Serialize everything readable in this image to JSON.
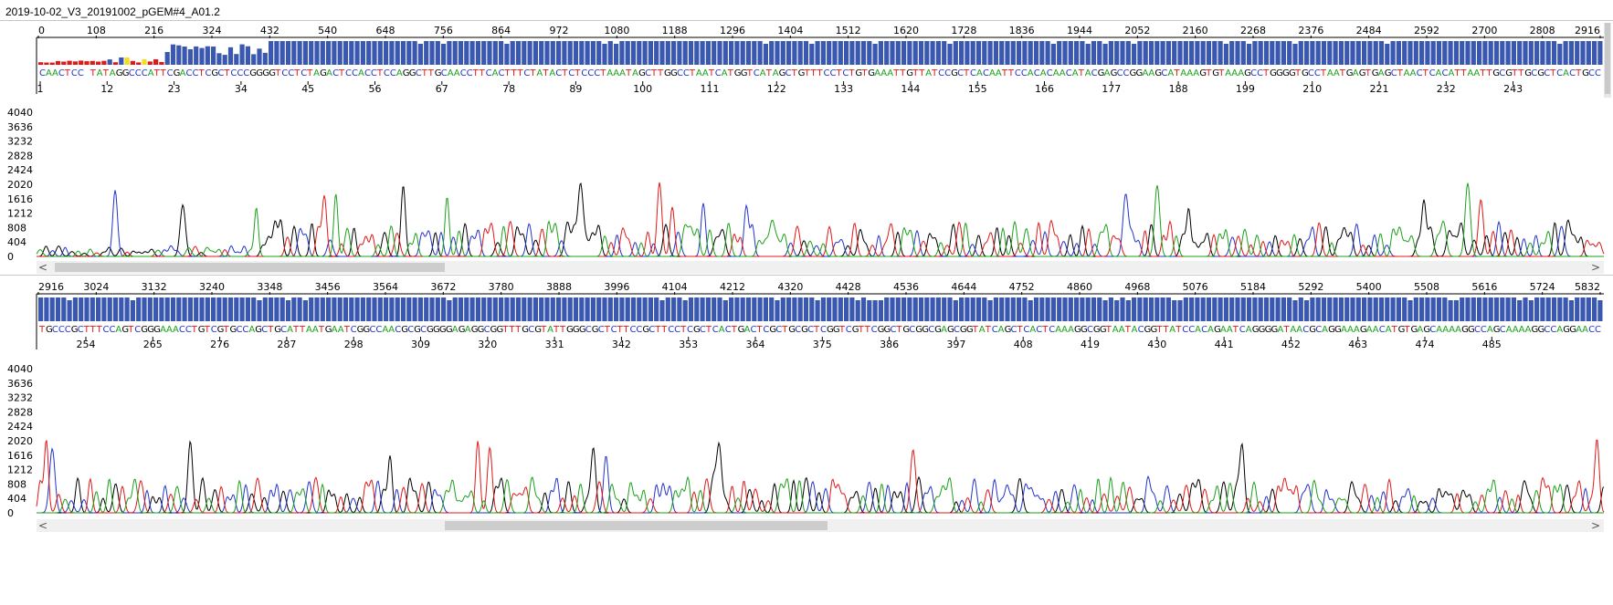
{
  "title": "2019-10-02_V3_20191002_pGEM#4_A01.2",
  "y_axis_labels": [
    "4040",
    "3636",
    "3232",
    "2828",
    "2424",
    "2020",
    "1616",
    "1212",
    "808",
    "404",
    "0"
  ],
  "panels": [
    {
      "id": "top",
      "scan_ticks": [
        "0",
        "108",
        "216",
        "324",
        "432",
        "540",
        "648",
        "756",
        "864",
        "972",
        "1080",
        "1188",
        "1296",
        "1404",
        "1512",
        "1620",
        "1728",
        "1836",
        "1944",
        "2052",
        "2160",
        "2268",
        "2376",
        "2484",
        "2592",
        "2700",
        "2808",
        "2916"
      ],
      "base_ticks": [
        "1",
        "12",
        "23",
        "34",
        "45",
        "56",
        "67",
        "78",
        "89",
        "100",
        "111",
        "122",
        "133",
        "144",
        "155",
        "166",
        "177",
        "188",
        "199",
        "210",
        "221",
        "232",
        "243"
      ],
      "sequence": "CAACTCC TATAGGCCCATTCGACCTCGCTCCCGGGGTCCTCTAGACTCCACCTCCAGGCTTGCAACCTTCACTTTCTATACTCTCCCTAAATAGCTTGGCCTAATCATGGTCATAGCTGTTTCCTCTGTGAAATTGTTATCCGCTCACAATTCCACACAACATACGAGCCGGAAGCATAAAGTGTAAAGCCTGGGGTGCCTAATGAGTGAGCTAACTCACATTAATTGCGTTGCGCTCACTGCC",
      "scroll": {
        "thumb_start": 0.0,
        "thumb_end": 0.255
      }
    },
    {
      "id": "bottom",
      "scan_ticks": [
        "2916",
        "3024",
        "3132",
        "3240",
        "3348",
        "3456",
        "3564",
        "3672",
        "3780",
        "3888",
        "3996",
        "4104",
        "4212",
        "4320",
        "4428",
        "4536",
        "4644",
        "4752",
        "4860",
        "4968",
        "5076",
        "5184",
        "5292",
        "5400",
        "5508",
        "5616",
        "5724",
        "5832"
      ],
      "base_ticks": [
        "254",
        "265",
        "276",
        "287",
        "298",
        "309",
        "320",
        "331",
        "342",
        "353",
        "364",
        "375",
        "386",
        "397",
        "408",
        "419",
        "430",
        "441",
        "452",
        "463",
        "474",
        "485"
      ],
      "sequence": "TGCCCGCTTTCCAGTCGGGAAACCTGTCGTGCCAGCTGCATTAATGAATCGGCCAACGCGCGGGGAGAGGCGGTTTGCGTATTGGGCGCTCTTCCGCTTCCTCGCTCACTGACTCGCTGCGCTCGGTCGTTCGGCTGCGGCGAGCGGTATCAGCTCACTCAAAGGCGGTAATACGGTTATCCACAGAATCAGGGGATAACGCAGGAAAGAACATGTGAGCAAAAGGCCAGCAAAAGGCCAGGAACC",
      "scroll": {
        "thumb_start": 0.255,
        "thumb_end": 0.505
      }
    }
  ],
  "base_colors": {
    "A": "#1ba11b",
    "C": "#2233cc",
    "G": "#000000",
    "T": "#e01818"
  },
  "quality_colors": {
    "high": "#3a58b0",
    "mid": "#f0e020",
    "low": "#e01818"
  }
}
